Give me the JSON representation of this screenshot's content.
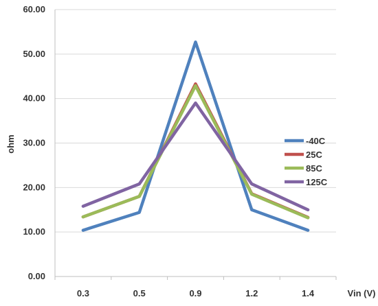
{
  "chart_data": {
    "type": "line",
    "title": "",
    "xlabel": "Vin (V)",
    "ylabel": "ohm",
    "categories": [
      "0.3",
      "0.5",
      "0.9",
      "1.2",
      "1.4"
    ],
    "ylim": [
      0,
      60
    ],
    "y_ticks": [
      "0.00",
      "10.00",
      "20.00",
      "30.00",
      "40.00",
      "50.00",
      "60.00"
    ],
    "grid": "horizontal",
    "legend_position": "right",
    "series": [
      {
        "name": "-40C",
        "color": "#4f81bd",
        "values": [
          10.4,
          14.4,
          52.7,
          15.0,
          10.4
        ]
      },
      {
        "name": "25C",
        "color": "#c0504d",
        "values": [
          13.4,
          18.0,
          43.3,
          18.6,
          13.3
        ]
      },
      {
        "name": "85C",
        "color": "#9bbb59",
        "values": [
          13.4,
          18.0,
          42.9,
          18.5,
          13.2
        ]
      },
      {
        "name": "125C",
        "color": "#8064a2",
        "values": [
          15.8,
          20.8,
          39.0,
          20.8,
          15.0
        ]
      }
    ]
  }
}
